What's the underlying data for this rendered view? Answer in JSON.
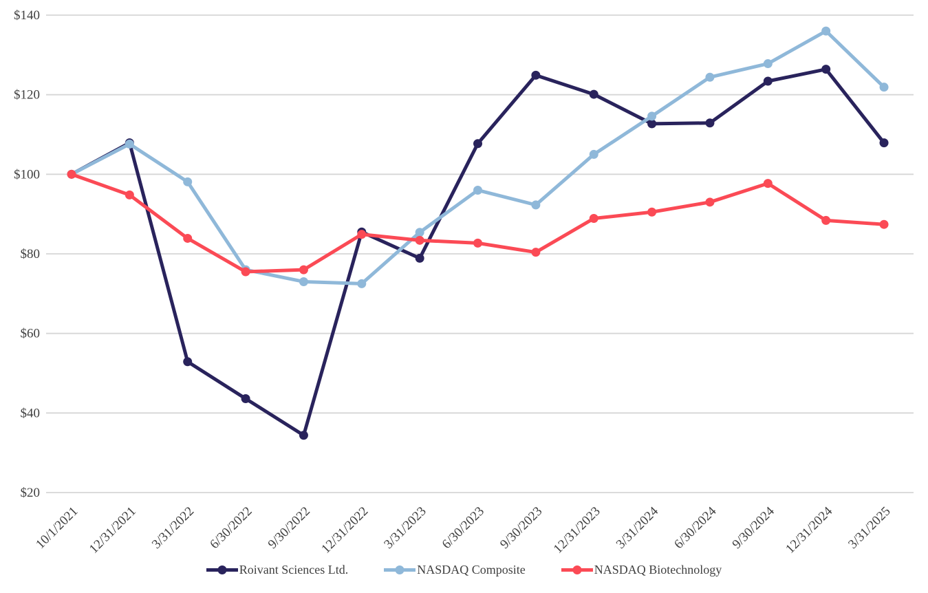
{
  "chart_data": {
    "type": "line",
    "title": "",
    "xlabel": "",
    "ylabel": "",
    "categories": [
      "10/1/2021",
      "12/31/2021",
      "3/31/2022",
      "6/30/2022",
      "9/30/2022",
      "12/31/2022",
      "3/31/2023",
      "6/30/2023",
      "9/30/2023",
      "12/31/2023",
      "3/31/2024",
      "6/30/2024",
      "9/30/2024",
      "12/31/2024",
      "3/31/2025"
    ],
    "series": [
      {
        "name": "Roivant Sciences Ltd.",
        "color": "#29235c",
        "values": [
          100.0,
          107.9,
          52.9,
          43.6,
          34.4,
          85.5,
          78.9,
          107.7,
          124.9,
          120.1,
          112.7,
          112.9,
          123.4,
          126.4,
          107.9
        ]
      },
      {
        "name": "NASDAQ Composite",
        "color": "#8fb8d9",
        "values": [
          100.0,
          107.6,
          98.1,
          76.0,
          73.0,
          72.5,
          85.4,
          96.0,
          92.3,
          105.0,
          114.6,
          124.4,
          127.8,
          136.0,
          121.9
        ]
      },
      {
        "name": "NASDAQ Biotechnology",
        "color": "#fb4a55",
        "values": [
          100.0,
          94.8,
          83.9,
          75.5,
          76.0,
          84.9,
          83.4,
          82.7,
          80.4,
          88.9,
          90.5,
          93.0,
          97.7,
          88.4,
          87.4
        ]
      }
    ],
    "ylim": [
      20,
      140
    ],
    "ytick_step": 20,
    "ytick_labels": [
      "$20",
      "$40",
      "$60",
      "$80",
      "$100",
      "$120",
      "$140"
    ],
    "grid": "horizontal",
    "gridline_color": "#d6d6d6",
    "legend_position": "bottom"
  }
}
